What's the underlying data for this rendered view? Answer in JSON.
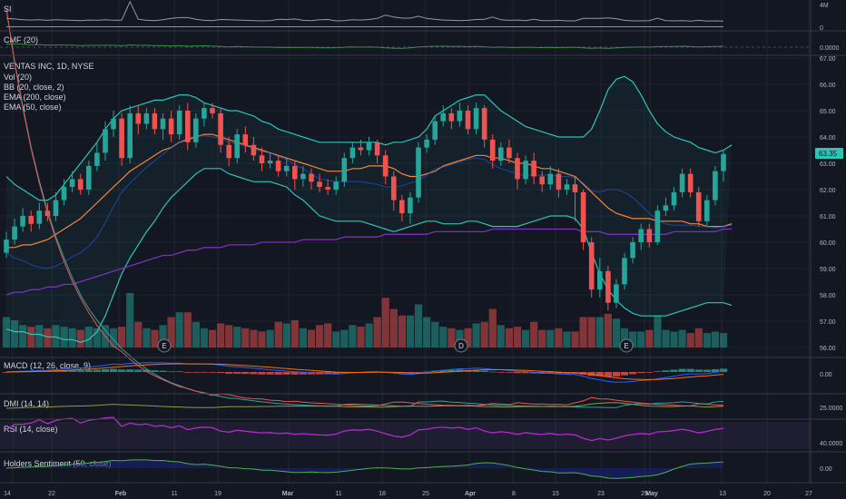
{
  "header": {
    "symbol_line": "VENTAS INC, 1D, NYSE",
    "indicators": [
      "Vol (20)",
      "BB (20, close, 2)",
      "EMA (200, close)",
      "EMA (50, close)"
    ]
  },
  "panes": {
    "si": {
      "label": "SI",
      "ticks": [
        "4M",
        "0"
      ]
    },
    "cmf": {
      "label": "CMF (20)",
      "ticks": [
        "0.0000"
      ]
    },
    "macd": {
      "label": "MACD (12, 26, close, 9)",
      "ticks": [
        "0.00"
      ]
    },
    "dmi": {
      "label": "DMI (14, 14)",
      "ticks": [
        "25.0000"
      ]
    },
    "rsi": {
      "label": "RSI (14, close)",
      "ticks": [
        "40.0000"
      ]
    },
    "hs": {
      "label": "Holders Sentiment (50, close)",
      "ticks": [
        "0.00"
      ]
    }
  },
  "price_badge": "63.35",
  "earnings_markers": [
    {
      "date": "Feb 14",
      "letter": "E"
    },
    {
      "date": "Apr 1",
      "letter": "D"
    },
    {
      "date": "Apr 30",
      "letter": "E"
    }
  ],
  "colors": {
    "up": "#26a69a",
    "down": "#ef5350",
    "bb": "#2ec4b6",
    "ema50": "#f7843c",
    "ema200": "#7b2fbe",
    "macd": "#2962ff",
    "signal": "#ff6d00",
    "rsi": "#b32cc9"
  },
  "chart_data": {
    "type": "candlestick",
    "title": "VENTAS INC, 1D, NYSE",
    "ylim": [
      56,
      67
    ],
    "y_ticks": [
      67,
      66,
      65,
      64,
      63,
      62,
      61,
      60,
      59,
      58,
      57,
      56
    ],
    "x_ticks": [
      "14",
      "22",
      "Feb",
      "11",
      "19",
      "Mar",
      "11",
      "18",
      "25",
      "Apr",
      "8",
      "15",
      "23",
      "29",
      "May",
      "13",
      "20",
      "27"
    ],
    "candles": [
      {
        "o": 59.6,
        "c": 60.1,
        "h": 60.4,
        "l": 59.4,
        "v": 0.95
      },
      {
        "o": 60.1,
        "c": 60.6,
        "h": 60.9,
        "l": 59.9,
        "v": 0.85
      },
      {
        "o": 60.6,
        "c": 61.0,
        "h": 61.3,
        "l": 60.4,
        "v": 0.7
      },
      {
        "o": 61.0,
        "c": 60.7,
        "h": 61.2,
        "l": 60.4,
        "v": 0.65
      },
      {
        "o": 60.7,
        "c": 61.2,
        "h": 61.5,
        "l": 60.5,
        "v": 0.7
      },
      {
        "o": 61.2,
        "c": 61.0,
        "h": 61.5,
        "l": 60.8,
        "v": 0.6
      },
      {
        "o": 61.0,
        "c": 61.6,
        "h": 61.9,
        "l": 60.8,
        "v": 0.7
      },
      {
        "o": 61.6,
        "c": 62.1,
        "h": 62.4,
        "l": 61.4,
        "v": 0.65
      },
      {
        "o": 62.1,
        "c": 62.4,
        "h": 62.7,
        "l": 61.9,
        "v": 0.6
      },
      {
        "o": 62.4,
        "c": 62.0,
        "h": 62.6,
        "l": 61.8,
        "v": 0.55
      },
      {
        "o": 62.0,
        "c": 62.9,
        "h": 63.1,
        "l": 61.8,
        "v": 0.65
      },
      {
        "o": 62.9,
        "c": 63.4,
        "h": 63.8,
        "l": 62.7,
        "v": 0.6
      },
      {
        "o": 63.4,
        "c": 64.3,
        "h": 64.6,
        "l": 63.1,
        "v": 0.7
      },
      {
        "o": 64.3,
        "c": 64.7,
        "h": 65.0,
        "l": 64.0,
        "v": 0.6
      },
      {
        "o": 64.7,
        "c": 63.2,
        "h": 64.9,
        "l": 62.9,
        "v": 0.65
      },
      {
        "o": 63.2,
        "c": 64.9,
        "h": 65.2,
        "l": 63.0,
        "v": 1.7
      },
      {
        "o": 64.9,
        "c": 64.5,
        "h": 65.2,
        "l": 64.1,
        "v": 0.8
      },
      {
        "o": 64.5,
        "c": 64.9,
        "h": 65.1,
        "l": 64.3,
        "v": 0.6
      },
      {
        "o": 64.9,
        "c": 64.3,
        "h": 65.1,
        "l": 64.1,
        "v": 0.55
      },
      {
        "o": 64.3,
        "c": 64.7,
        "h": 64.9,
        "l": 63.9,
        "v": 0.7
      },
      {
        "o": 64.7,
        "c": 64.1,
        "h": 65.0,
        "l": 63.8,
        "v": 0.95
      },
      {
        "o": 64.1,
        "c": 65.0,
        "h": 65.2,
        "l": 63.9,
        "v": 1.1
      },
      {
        "o": 65.0,
        "c": 63.8,
        "h": 65.3,
        "l": 63.5,
        "v": 1.1
      },
      {
        "o": 63.8,
        "c": 64.7,
        "h": 64.9,
        "l": 63.6,
        "v": 0.8
      },
      {
        "o": 64.7,
        "c": 65.1,
        "h": 65.3,
        "l": 64.4,
        "v": 0.6
      },
      {
        "o": 65.1,
        "c": 64.9,
        "h": 65.3,
        "l": 64.7,
        "v": 0.55
      },
      {
        "o": 64.9,
        "c": 63.7,
        "h": 65.1,
        "l": 63.4,
        "v": 0.75
      },
      {
        "o": 63.7,
        "c": 63.2,
        "h": 64.0,
        "l": 62.9,
        "v": 0.7
      },
      {
        "o": 63.2,
        "c": 64.1,
        "h": 64.3,
        "l": 63.0,
        "v": 0.65
      },
      {
        "o": 64.1,
        "c": 63.7,
        "h": 64.4,
        "l": 63.4,
        "v": 0.6
      },
      {
        "o": 63.7,
        "c": 63.3,
        "h": 64.0,
        "l": 63.1,
        "v": 0.55
      },
      {
        "o": 63.3,
        "c": 63.0,
        "h": 63.6,
        "l": 62.7,
        "v": 0.5
      },
      {
        "o": 63.0,
        "c": 63.1,
        "h": 63.4,
        "l": 62.8,
        "v": 0.55
      },
      {
        "o": 63.1,
        "c": 62.7,
        "h": 63.3,
        "l": 62.5,
        "v": 0.8
      },
      {
        "o": 62.7,
        "c": 62.9,
        "h": 63.2,
        "l": 62.5,
        "v": 0.75
      },
      {
        "o": 62.9,
        "c": 62.4,
        "h": 63.1,
        "l": 62.0,
        "v": 0.85
      },
      {
        "o": 62.4,
        "c": 62.6,
        "h": 62.9,
        "l": 62.1,
        "v": 0.6
      },
      {
        "o": 62.6,
        "c": 62.3,
        "h": 62.8,
        "l": 62.0,
        "v": 0.55
      },
      {
        "o": 62.3,
        "c": 62.1,
        "h": 62.6,
        "l": 61.9,
        "v": 0.7
      },
      {
        "o": 62.1,
        "c": 62.0,
        "h": 62.4,
        "l": 61.8,
        "v": 0.75
      },
      {
        "o": 62.0,
        "c": 62.3,
        "h": 62.5,
        "l": 61.8,
        "v": 0.5
      },
      {
        "o": 62.3,
        "c": 63.2,
        "h": 63.4,
        "l": 62.1,
        "v": 0.55
      },
      {
        "o": 63.2,
        "c": 63.6,
        "h": 63.8,
        "l": 63.0,
        "v": 0.7
      },
      {
        "o": 63.6,
        "c": 63.5,
        "h": 63.9,
        "l": 63.3,
        "v": 0.65
      },
      {
        "o": 63.5,
        "c": 63.8,
        "h": 64.0,
        "l": 63.3,
        "v": 0.75
      },
      {
        "o": 63.8,
        "c": 63.3,
        "h": 63.9,
        "l": 63.0,
        "v": 0.95
      },
      {
        "o": 63.3,
        "c": 62.5,
        "h": 63.5,
        "l": 62.2,
        "v": 1.55
      },
      {
        "o": 62.5,
        "c": 61.6,
        "h": 62.7,
        "l": 61.2,
        "v": 1.2
      },
      {
        "o": 61.6,
        "c": 61.1,
        "h": 61.8,
        "l": 60.8,
        "v": 1.0
      },
      {
        "o": 61.1,
        "c": 61.7,
        "h": 61.9,
        "l": 60.7,
        "v": 1.0
      },
      {
        "o": 61.7,
        "c": 63.6,
        "h": 63.8,
        "l": 61.5,
        "v": 1.35
      },
      {
        "o": 63.6,
        "c": 63.9,
        "h": 64.1,
        "l": 63.4,
        "v": 0.95
      },
      {
        "o": 63.9,
        "c": 64.6,
        "h": 64.8,
        "l": 63.7,
        "v": 0.8
      },
      {
        "o": 64.6,
        "c": 64.9,
        "h": 65.2,
        "l": 64.4,
        "v": 0.65
      },
      {
        "o": 64.9,
        "c": 64.6,
        "h": 65.1,
        "l": 64.3,
        "v": 0.6
      },
      {
        "o": 64.6,
        "c": 65.0,
        "h": 65.3,
        "l": 64.4,
        "v": 0.55
      },
      {
        "o": 65.0,
        "c": 64.3,
        "h": 65.2,
        "l": 64.1,
        "v": 0.6
      },
      {
        "o": 64.3,
        "c": 65.1,
        "h": 65.3,
        "l": 64.1,
        "v": 0.75
      },
      {
        "o": 65.1,
        "c": 63.9,
        "h": 65.2,
        "l": 63.6,
        "v": 0.8
      },
      {
        "o": 63.9,
        "c": 63.1,
        "h": 64.1,
        "l": 62.8,
        "v": 1.2
      },
      {
        "o": 63.1,
        "c": 63.6,
        "h": 63.8,
        "l": 62.9,
        "v": 0.7
      },
      {
        "o": 63.6,
        "c": 63.2,
        "h": 63.9,
        "l": 63.0,
        "v": 0.6
      },
      {
        "o": 63.2,
        "c": 62.4,
        "h": 63.4,
        "l": 62.0,
        "v": 0.65
      },
      {
        "o": 62.4,
        "c": 63.1,
        "h": 63.3,
        "l": 62.2,
        "v": 0.55
      },
      {
        "o": 63.1,
        "c": 62.5,
        "h": 63.4,
        "l": 62.2,
        "v": 0.8
      },
      {
        "o": 62.5,
        "c": 62.2,
        "h": 62.7,
        "l": 61.9,
        "v": 0.55
      },
      {
        "o": 62.2,
        "c": 62.6,
        "h": 62.9,
        "l": 62.0,
        "v": 0.55
      },
      {
        "o": 62.6,
        "c": 62.0,
        "h": 62.8,
        "l": 61.7,
        "v": 0.6
      },
      {
        "o": 62.0,
        "c": 62.2,
        "h": 62.4,
        "l": 61.8,
        "v": 0.5
      },
      {
        "o": 62.2,
        "c": 61.9,
        "h": 62.5,
        "l": 60.8,
        "v": 0.5
      },
      {
        "o": 61.9,
        "c": 60.0,
        "h": 62.0,
        "l": 59.7,
        "v": 0.95
      },
      {
        "o": 60.0,
        "c": 58.2,
        "h": 60.2,
        "l": 57.9,
        "v": 0.95
      },
      {
        "o": 58.2,
        "c": 58.9,
        "h": 59.4,
        "l": 57.9,
        "v": 0.95
      },
      {
        "o": 58.9,
        "c": 57.7,
        "h": 59.1,
        "l": 57.4,
        "v": 1.05
      },
      {
        "o": 57.7,
        "c": 58.4,
        "h": 58.6,
        "l": 57.5,
        "v": 0.9
      },
      {
        "o": 58.4,
        "c": 59.4,
        "h": 59.6,
        "l": 58.2,
        "v": 0.6
      },
      {
        "o": 59.4,
        "c": 60.0,
        "h": 60.2,
        "l": 59.2,
        "v": 0.5
      },
      {
        "o": 60.0,
        "c": 60.5,
        "h": 60.7,
        "l": 59.7,
        "v": 0.5
      },
      {
        "o": 60.5,
        "c": 60.0,
        "h": 60.7,
        "l": 59.8,
        "v": 0.55
      },
      {
        "o": 60.0,
        "c": 61.2,
        "h": 61.4,
        "l": 59.9,
        "v": 1.0
      },
      {
        "o": 61.2,
        "c": 61.4,
        "h": 61.7,
        "l": 61.0,
        "v": 0.55
      },
      {
        "o": 61.4,
        "c": 61.9,
        "h": 62.1,
        "l": 61.2,
        "v": 0.5
      },
      {
        "o": 61.9,
        "c": 62.6,
        "h": 62.8,
        "l": 61.7,
        "v": 0.55
      },
      {
        "o": 62.6,
        "c": 61.9,
        "h": 62.8,
        "l": 61.7,
        "v": 0.45
      },
      {
        "o": 61.9,
        "c": 60.8,
        "h": 62.1,
        "l": 60.6,
        "v": 0.6
      },
      {
        "o": 60.8,
        "c": 61.6,
        "h": 61.8,
        "l": 60.6,
        "v": 0.45
      },
      {
        "o": 61.6,
        "c": 62.7,
        "h": 62.9,
        "l": 61.4,
        "v": 0.5
      },
      {
        "o": 62.7,
        "c": 63.35,
        "h": 63.5,
        "l": 62.3,
        "v": 0.45
      }
    ],
    "series": [
      {
        "name": "EMA (50, close)",
        "values": [
          59.8,
          59.8,
          59.9,
          59.9,
          60.0,
          60.1,
          60.3,
          60.5,
          60.7,
          60.9,
          61.2,
          61.5,
          61.8,
          62.1,
          62.4,
          62.7,
          62.9,
          63.1,
          63.3,
          63.5,
          63.6,
          63.8,
          63.9,
          64.0,
          64.1,
          64.1,
          64.0,
          63.9,
          63.8,
          63.7,
          63.6,
          63.5,
          63.4,
          63.3,
          63.2,
          63.1,
          63.0,
          62.9,
          62.8,
          62.7,
          62.7,
          62.7,
          62.8,
          62.8,
          62.9,
          62.9,
          62.9,
          62.8,
          62.6,
          62.5,
          62.5,
          62.6,
          62.7,
          62.9,
          63.0,
          63.1,
          63.2,
          63.3,
          63.3,
          63.2,
          63.2,
          63.1,
          63.0,
          63.0,
          62.9,
          62.8,
          62.8,
          62.7,
          62.6,
          62.5,
          62.2,
          61.9,
          61.6,
          61.3,
          61.1,
          61.0,
          60.9,
          60.9,
          60.9,
          60.8,
          60.8,
          60.8,
          60.8,
          60.7,
          60.7,
          60.6,
          60.6,
          60.6,
          60.7
        ]
      },
      {
        "name": "EMA (200, close)",
        "values": [
          58.0,
          58.1,
          58.1,
          58.2,
          58.2,
          58.3,
          58.3,
          58.4,
          58.4,
          58.5,
          58.6,
          58.7,
          58.8,
          58.9,
          59.0,
          59.1,
          59.2,
          59.3,
          59.4,
          59.5,
          59.5,
          59.6,
          59.7,
          59.7,
          59.8,
          59.8,
          59.8,
          59.9,
          59.9,
          59.9,
          59.9,
          60.0,
          60.0,
          60.0,
          60.0,
          60.0,
          60.1,
          60.1,
          60.1,
          60.1,
          60.1,
          60.2,
          60.2,
          60.2,
          60.2,
          60.2,
          60.3,
          60.3,
          60.3,
          60.3,
          60.3,
          60.3,
          60.4,
          60.4,
          60.4,
          60.4,
          60.4,
          60.4,
          60.4,
          60.5,
          60.5,
          60.5,
          60.5,
          60.5,
          60.5,
          60.5,
          60.5,
          60.5,
          60.5,
          60.5,
          60.4,
          60.4,
          60.4,
          60.3,
          60.3,
          60.3,
          60.3,
          60.3,
          60.3,
          60.3,
          60.3,
          60.4,
          60.4,
          60.4,
          60.4,
          60.4,
          60.4,
          60.5,
          60.5
        ]
      },
      {
        "name": "BB upper",
        "values": [
          62.5,
          62.2,
          62.0,
          61.8,
          61.6,
          61.6,
          61.8,
          62.2,
          62.6,
          63.0,
          63.4,
          63.8,
          64.3,
          64.7,
          65.0,
          65.1,
          65.2,
          65.3,
          65.4,
          65.4,
          65.5,
          65.6,
          65.6,
          65.5,
          65.3,
          65.2,
          65.1,
          65.0,
          65.0,
          64.9,
          64.8,
          64.6,
          64.5,
          64.3,
          64.2,
          64.1,
          64.0,
          63.9,
          63.8,
          63.8,
          63.8,
          63.8,
          63.8,
          63.8,
          63.8,
          63.8,
          63.7,
          63.8,
          63.8,
          63.9,
          64.0,
          64.3,
          64.8,
          65.0,
          65.2,
          65.4,
          65.5,
          65.6,
          65.6,
          65.3,
          65.0,
          64.8,
          64.6,
          64.4,
          64.3,
          64.2,
          64.1,
          64.0,
          64.0,
          64.0,
          64.0,
          64.3,
          65.0,
          65.8,
          66.2,
          66.3,
          66.1,
          65.6,
          65.0,
          64.5,
          64.2,
          64.0,
          63.9,
          63.8,
          63.6,
          63.5,
          63.4,
          63.5,
          63.7
        ]
      },
      {
        "name": "BB lower",
        "values": [
          56.7,
          56.6,
          56.6,
          56.5,
          56.5,
          56.4,
          56.4,
          56.3,
          56.3,
          56.2,
          56.3,
          56.6,
          57.2,
          58.0,
          58.8,
          59.4,
          59.9,
          60.4,
          60.8,
          61.3,
          61.7,
          62.0,
          62.3,
          62.6,
          62.8,
          62.8,
          62.8,
          62.6,
          62.5,
          62.4,
          62.3,
          62.3,
          62.3,
          62.2,
          62.1,
          61.8,
          61.6,
          61.3,
          61.0,
          60.9,
          60.8,
          60.8,
          60.8,
          60.8,
          60.7,
          60.6,
          60.5,
          60.4,
          60.5,
          60.6,
          60.7,
          60.8,
          60.8,
          60.7,
          60.7,
          60.7,
          60.8,
          60.8,
          60.7,
          60.6,
          60.6,
          60.6,
          60.6,
          60.7,
          60.8,
          60.9,
          61.0,
          61.0,
          61.0,
          60.9,
          60.5,
          59.6,
          58.8,
          58.2,
          57.8,
          57.5,
          57.3,
          57.2,
          57.2,
          57.2,
          57.2,
          57.3,
          57.4,
          57.5,
          57.6,
          57.7,
          57.7,
          57.7,
          57.6
        ]
      }
    ]
  }
}
